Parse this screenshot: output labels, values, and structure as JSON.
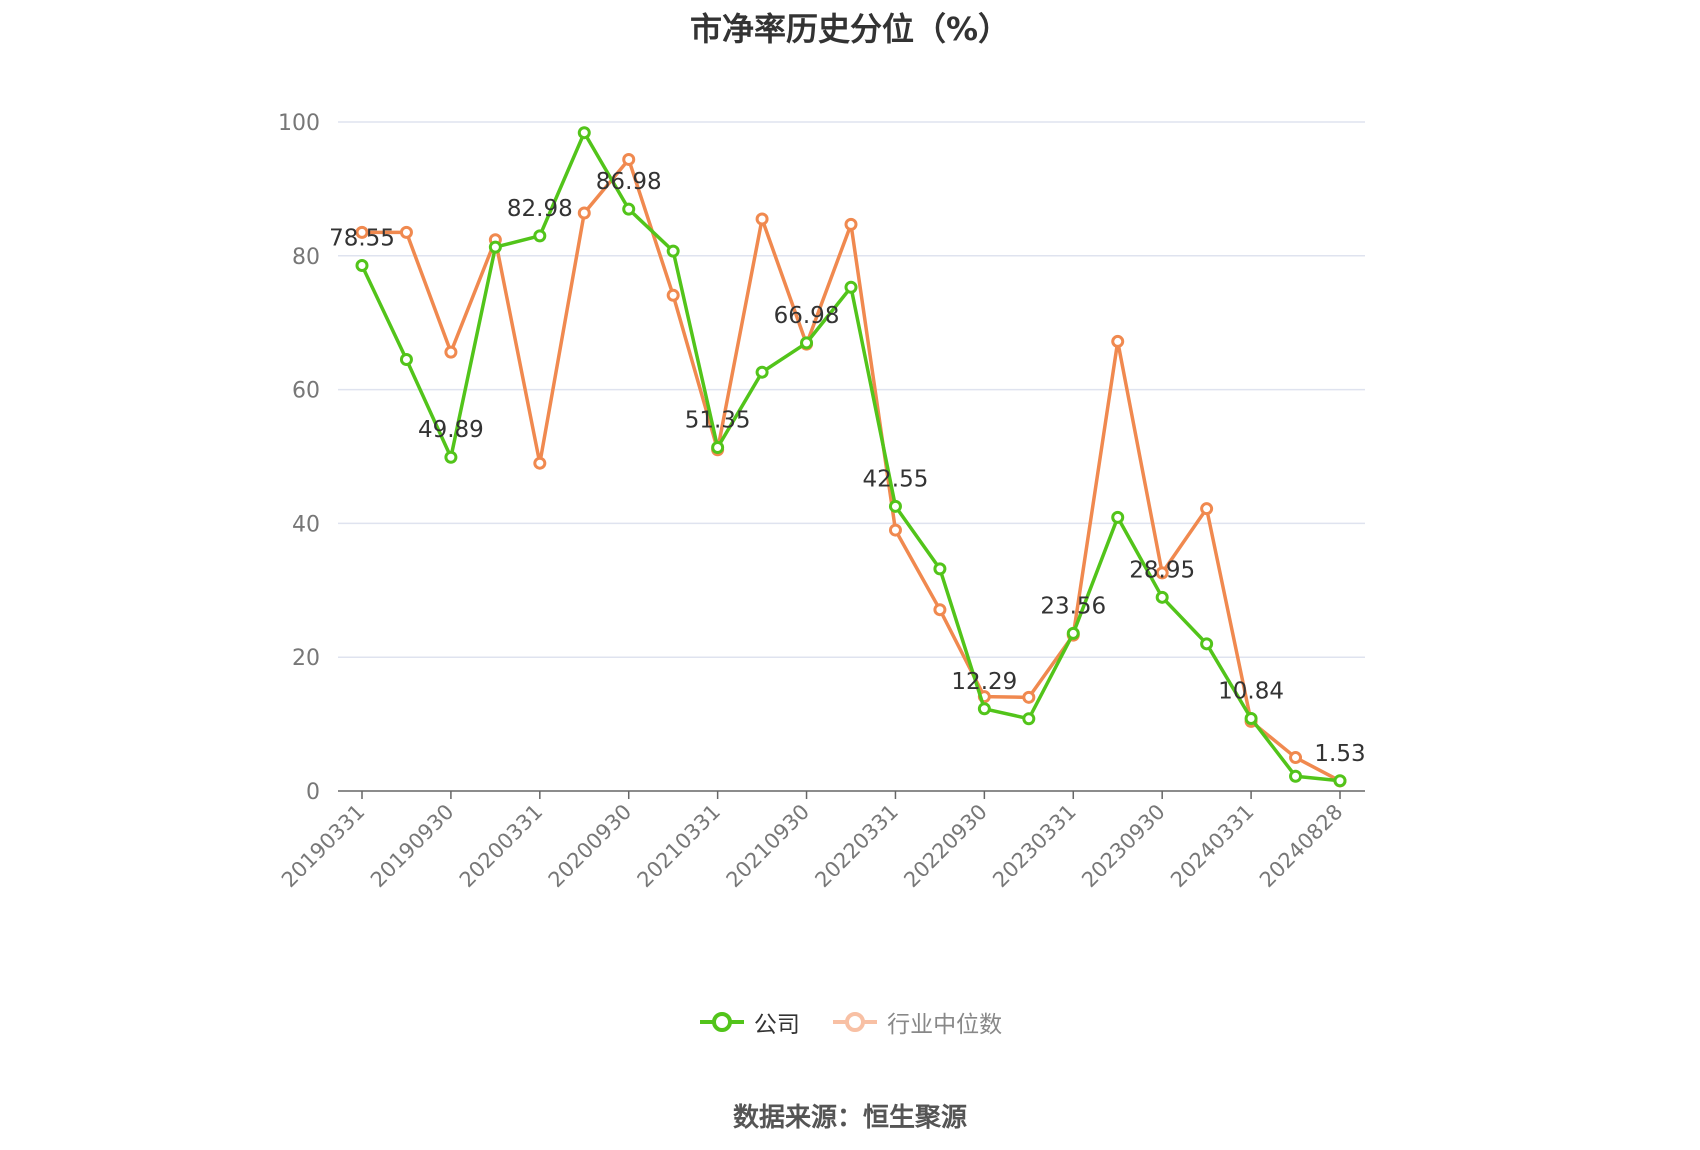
{
  "title": "市净率历史分位（%）",
  "source": "数据来源：恒生聚源",
  "chart_data": {
    "type": "line",
    "title": "市净率历史分位（%）",
    "xlabel": "",
    "ylabel": "",
    "ylim": [
      0,
      100
    ],
    "yticks": [
      0,
      20,
      40,
      60,
      80,
      100
    ],
    "grid": true,
    "legend_position": "bottom",
    "x": [
      "20190331",
      "20190630",
      "20190930",
      "20191231",
      "20200331",
      "20200630",
      "20200930",
      "20201231",
      "20210331",
      "20210630",
      "20210930",
      "20211231",
      "20220331",
      "20220630",
      "20220930",
      "20221231",
      "20230331",
      "20230630",
      "20230930",
      "20231231",
      "20240331",
      "20240630",
      "20240828"
    ],
    "x_tick_labels": [
      "20190331",
      "20190930",
      "20200331",
      "20200930",
      "20210331",
      "20210930",
      "20220331",
      "20220930",
      "20230331",
      "20230930",
      "20240331",
      "20240828"
    ],
    "series": [
      {
        "name": "公司",
        "color": "#52c41a",
        "values": [
          78.55,
          64.5,
          49.89,
          81.3,
          82.98,
          98.4,
          86.98,
          80.7,
          51.35,
          62.6,
          66.98,
          75.3,
          42.55,
          33.2,
          12.29,
          10.8,
          23.56,
          40.9,
          28.95,
          22.0,
          10.84,
          2.2,
          1.53
        ],
        "data_labels": {
          "0": "78.55",
          "2": "49.89",
          "4": "82.98",
          "6": "86.98",
          "8": "51.35",
          "10": "66.98",
          "12": "42.55",
          "14": "12.29",
          "16": "23.56",
          "18": "28.95",
          "20": "10.84",
          "22": "1.53"
        }
      },
      {
        "name": "行业中位数",
        "color": "#f0894f",
        "values": [
          83.5,
          83.5,
          65.6,
          82.4,
          49.0,
          86.4,
          94.4,
          74.1,
          51.0,
          85.5,
          66.8,
          84.7,
          39.0,
          27.1,
          14.1,
          14.0,
          23.3,
          67.2,
          32.6,
          42.2,
          10.4,
          5.0,
          1.5
        ]
      }
    ]
  }
}
